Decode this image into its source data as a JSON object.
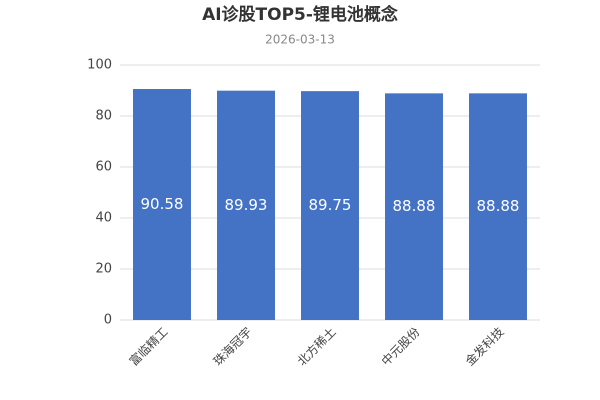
{
  "chart_data": {
    "type": "bar",
    "title": "AI诊股TOP5-锂电池概念",
    "subtitle": "2026-03-13",
    "categories": [
      "富临精工",
      "珠海冠宇",
      "北方稀土",
      "中元股份",
      "金发科技"
    ],
    "values": [
      90.58,
      89.93,
      89.75,
      88.88,
      88.88
    ],
    "color": "#4472c4",
    "ylim": [
      0,
      100
    ],
    "yticks": [
      0,
      20,
      40,
      60,
      80,
      100
    ],
    "grid": true
  }
}
